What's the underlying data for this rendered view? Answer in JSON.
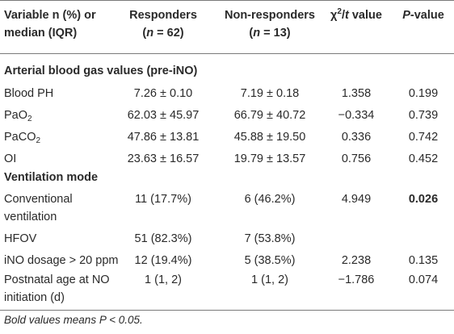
{
  "header": {
    "col0_line1": "Variable n (%) or",
    "col0_line2": "median (IQR)",
    "col1_line1": "Responders",
    "col1_n_prefix": "(",
    "col1_n_var": "n",
    "col1_n_eq": " = 62)",
    "col2_line1": "Non-responders",
    "col2_n_prefix": "(",
    "col2_n_var": "n",
    "col2_n_eq": " = 13)",
    "col3_chi": "χ",
    "col3_sup": "2",
    "col3_slash": "/",
    "col3_t": "t",
    "col3_value": " value",
    "col4_p": "P",
    "col4_value": "-value"
  },
  "sections": {
    "abg": "Arterial blood gas values (pre-iNO)",
    "vent": "Ventilation mode"
  },
  "rows": [
    {
      "label": "Blood PH",
      "resp": "7.26 ± 0.10",
      "nonresp": "7.19 ± 0.18",
      "stat": "1.358",
      "p": "0.199"
    },
    {
      "label_main": "PaO",
      "label_sub": "2",
      "resp": "62.03 ± 45.97",
      "nonresp": "66.79 ± 40.72",
      "stat": "−0.334",
      "p": "0.739"
    },
    {
      "label_main": "PaCO",
      "label_sub": "2",
      "resp": "47.86 ± 13.81",
      "nonresp": "45.88 ± 19.50",
      "stat": "0.336",
      "p": "0.742"
    },
    {
      "label": "OI",
      "resp": "23.63 ± 16.57",
      "nonresp": "19.79 ± 13.57",
      "stat": "0.756",
      "p": "0.452"
    },
    {
      "label_line1": "Conventional",
      "label_line2": "ventilation",
      "resp": "11 (17.7%)",
      "nonresp": "6 (46.2%)",
      "stat": "4.949",
      "p": "0.026"
    },
    {
      "label": "HFOV",
      "resp": "51 (82.3%)",
      "nonresp": "7 (53.8%)",
      "stat": "",
      "p": ""
    },
    {
      "label": "iNO dosage > 20 ppm",
      "resp": "12 (19.4%)",
      "nonresp": "5 (38.5%)",
      "stat": "2.238",
      "p": "0.135"
    },
    {
      "label_line1": "Postnatal age at NO",
      "label_line2": "initiation (d)",
      "resp": "1 (1, 2)",
      "nonresp": "1 (1, 2)",
      "stat": "−1.786",
      "p": "0.074"
    }
  ],
  "footnote": {
    "prefix": "Bold values means ",
    "p": "P",
    "suffix": " < 0.05."
  }
}
